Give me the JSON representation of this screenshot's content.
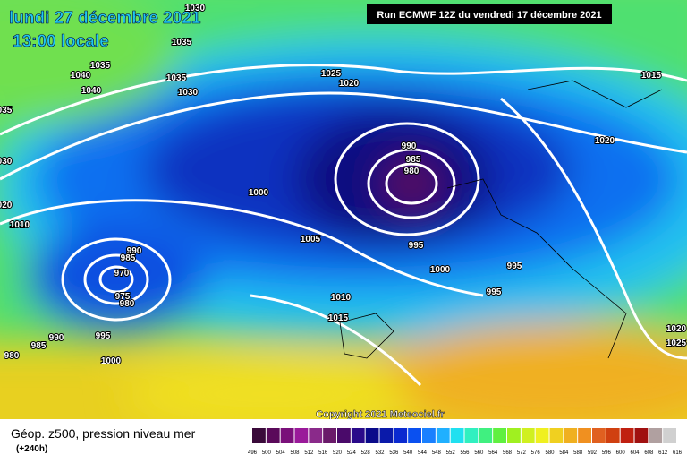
{
  "header": {
    "date": "lundi 27 décembre 2021",
    "time": "13:00 locale",
    "run": "Run ECMWF 12Z du vendredi 17 décembre 2021"
  },
  "copyright": "Copyright 2021 Meteociel.fr",
  "isobar_labels": [
    "1030",
    "1035",
    "1035",
    "1040",
    "1040",
    "1035",
    "1030",
    "035",
    "030",
    "020",
    "1010",
    "1025",
    "1020",
    "1015",
    "1020",
    "990",
    "985",
    "980",
    "1000",
    "1005",
    "995",
    "1000",
    "995",
    "995",
    "1010",
    "1015",
    "990",
    "985",
    "970",
    "975",
    "980",
    "990",
    "995",
    "985",
    "980",
    "1000",
    "1020",
    "1025"
  ],
  "legend": {
    "title": "Géop. z500, pression niveau mer",
    "lead": "(+240h)",
    "ticks": [
      496,
      500,
      504,
      508,
      512,
      516,
      520,
      524,
      528,
      532,
      536,
      540,
      544,
      548,
      552,
      556,
      560,
      564,
      568,
      572,
      576,
      580,
      584,
      588,
      592,
      596,
      600,
      604,
      608,
      612,
      616
    ],
    "colors": [
      "#3a0a3a",
      "#5a0a5a",
      "#7a107a",
      "#9a1a9a",
      "#8a2a8a",
      "#6a1a6a",
      "#4a0a6a",
      "#2a0a8a",
      "#0a0a8a",
      "#0a1aaa",
      "#0a2ad0",
      "#0a50f0",
      "#1a80ff",
      "#20b0ff",
      "#20e0f0",
      "#30f0c0",
      "#40f080",
      "#60f040",
      "#a0f020",
      "#d0f020",
      "#f0f020",
      "#f0d020",
      "#f0b020",
      "#f09020",
      "#e06020",
      "#d04010",
      "#c02010",
      "#a01010",
      "#b0a0a0",
      "#d0d0d0"
    ]
  }
}
